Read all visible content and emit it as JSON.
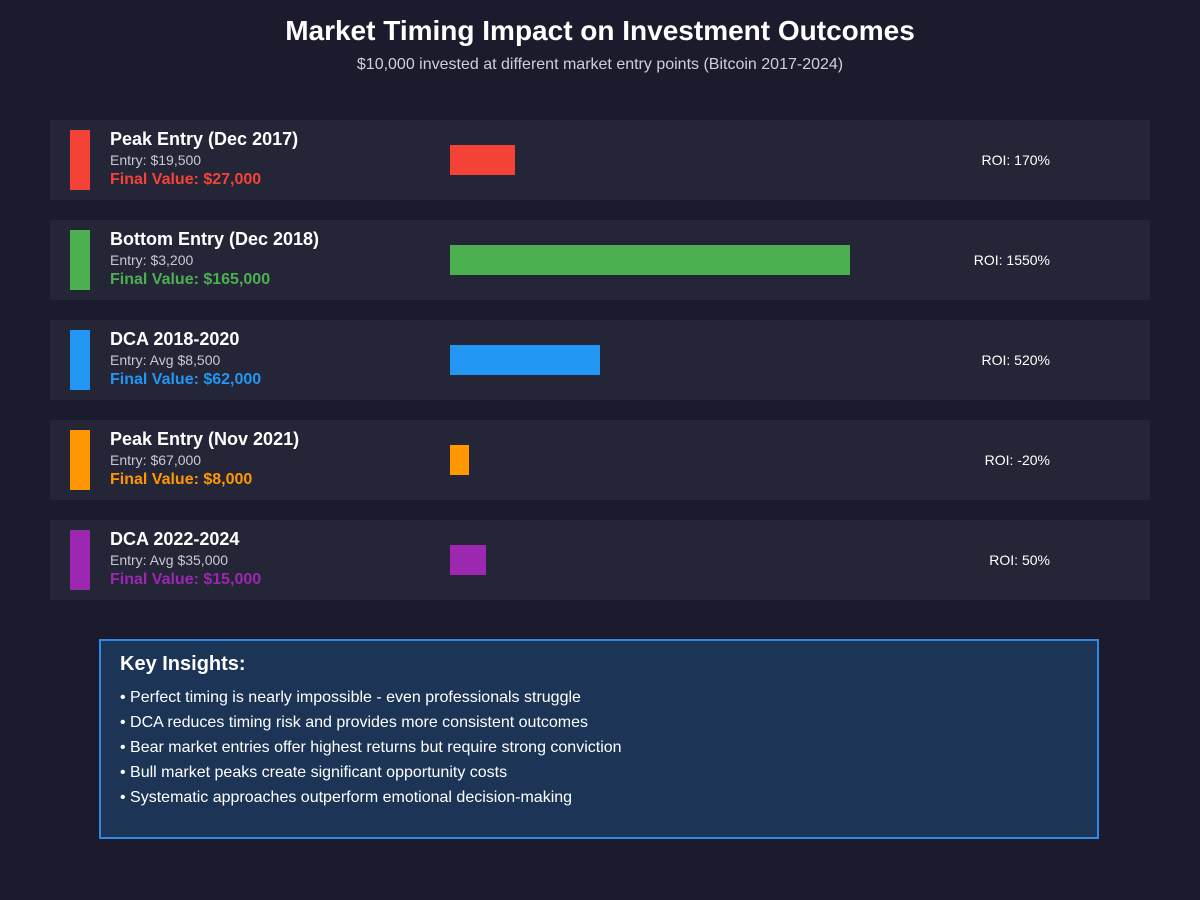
{
  "header": {
    "title": "Market Timing Impact on Investment Outcomes",
    "subtitle": "$10,000 invested at different market entry points (Bitcoin 2017-2024)"
  },
  "chart_data": {
    "type": "bar",
    "title": "Market Timing Impact on Investment Outcomes",
    "subtitle": "$10,000 invested at different market entry points (Bitcoin 2017-2024)",
    "categories": [
      "Peak Entry (Dec 2017)",
      "Bottom Entry (Dec 2018)",
      "DCA 2018-2020",
      "Peak Entry (Nov 2021)",
      "DCA 2022-2024"
    ],
    "rows": [
      {
        "label": "Peak Entry (Dec 2017)",
        "entry": "Entry: $19,500",
        "final_value": "Final Value: $27,000",
        "roi_label": "ROI: 170%",
        "value": 27000,
        "color": "#f44336"
      },
      {
        "label": "Bottom Entry (Dec 2018)",
        "entry": "Entry: $3,200",
        "final_value": "Final Value: $165,000",
        "roi_label": "ROI: 1550%",
        "value": 165000,
        "color": "#4caf50"
      },
      {
        "label": "DCA 2018-2020",
        "entry": "Entry: Avg $8,500",
        "final_value": "Final Value: $62,000",
        "roi_label": "ROI: 520%",
        "value": 62000,
        "color": "#2196f3"
      },
      {
        "label": "Peak Entry (Nov 2021)",
        "entry": "Entry: $67,000",
        "final_value": "Final Value: $8,000",
        "roi_label": "ROI: -20%",
        "value": 8000,
        "color": "#ff9800"
      },
      {
        "label": "DCA 2022-2024",
        "entry": "Entry: Avg $35,000",
        "final_value": "Final Value: $15,000",
        "roi_label": "ROI: 50%",
        "value": 15000,
        "color": "#9c27b0"
      }
    ]
  },
  "insights": {
    "title": "Key Insights:",
    "items": [
      "• Perfect timing is nearly impossible - even professionals struggle",
      "• DCA reduces timing risk and provides more consistent outcomes",
      "• Bear market entries offer highest returns but require strong conviction",
      "• Bull market peaks create significant opportunity costs",
      "• Systematic approaches outperform emotional decision-making"
    ]
  },
  "colors": {
    "background": "#1b1b2d",
    "row_background": "#252538",
    "insights_background": "#1c3557",
    "insights_border": "#2f8ae6"
  }
}
